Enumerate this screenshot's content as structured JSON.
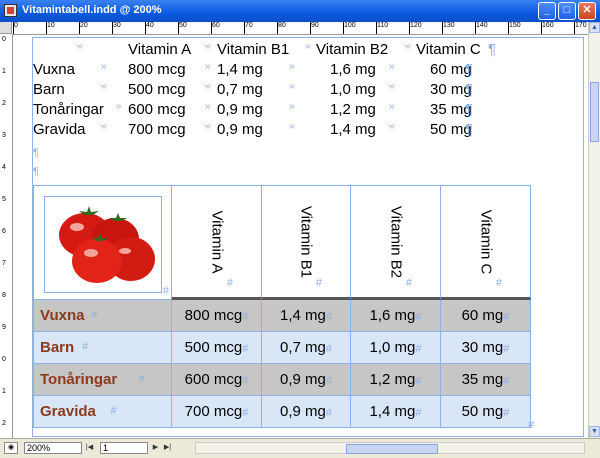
{
  "window": {
    "title": "Vitamintabell.indd @ 200%",
    "buttons": {
      "minimize": "_",
      "maximize": "□",
      "close": "✕"
    }
  },
  "rulers": {
    "top": [
      "0",
      "10",
      "20",
      "30",
      "40",
      "50",
      "60",
      "70",
      "80",
      "90",
      "100",
      "110",
      "120",
      "130",
      "140",
      "150",
      "160",
      "170"
    ],
    "left": [
      "0",
      "1",
      "2",
      "3",
      "4",
      "5",
      "6",
      "7",
      "8",
      "9",
      "0",
      "1",
      "2"
    ]
  },
  "text_table": {
    "header": [
      "Vitamin A",
      "Vitamin B1",
      "Vitamin B2",
      "Vitamin C"
    ],
    "rows": [
      {
        "label": "Vuxna",
        "values": [
          "800 mcg",
          "1,4 mg",
          "1,6 mg",
          "60 mg"
        ]
      },
      {
        "label": "Barn",
        "values": [
          "500 mcg",
          "0,7 mg",
          "1,0 mg",
          "30 mg"
        ]
      },
      {
        "label": "Tonåringar",
        "values": [
          "600 mcg",
          "0,9 mg",
          "1,2 mg",
          "35 mg"
        ]
      },
      {
        "label": "Gravida",
        "values": [
          "700 mcg",
          "0,9 mg",
          "1,4 mg",
          "50 mg"
        ]
      }
    ],
    "tab_mark": "»",
    "pilcrow": "¶"
  },
  "formatted_table": {
    "headers": [
      "Vitamin A",
      "Vitamin B1",
      "Vitamin B2",
      "Vitamin C"
    ],
    "rows": [
      {
        "label": "Vuxna",
        "values": [
          "800 mcg",
          "1,4 mg",
          "1,6 mg",
          "60 mg"
        ]
      },
      {
        "label": "Barn",
        "values": [
          "500 mcg",
          "0,7 mg",
          "1,0 mg",
          "30 mg"
        ]
      },
      {
        "label": "Tonåringar",
        "values": [
          "600 mcg",
          "0,9 mg",
          "1,2 mg",
          "35 mg"
        ]
      },
      {
        "label": "Gravida",
        "values": [
          "700 mcg",
          "0,9 mg",
          "1,4 mg",
          "50 mg"
        ]
      }
    ],
    "cell_end": "#"
  },
  "status": {
    "zoom": "200%",
    "page": "1"
  },
  "colors": {
    "title_bar": "#0a5ae0",
    "row_label": "#8b3a1e",
    "guide": "#8fb1e6",
    "row_gray": "#c6c6c6",
    "row_blue": "#d8e6f8"
  }
}
